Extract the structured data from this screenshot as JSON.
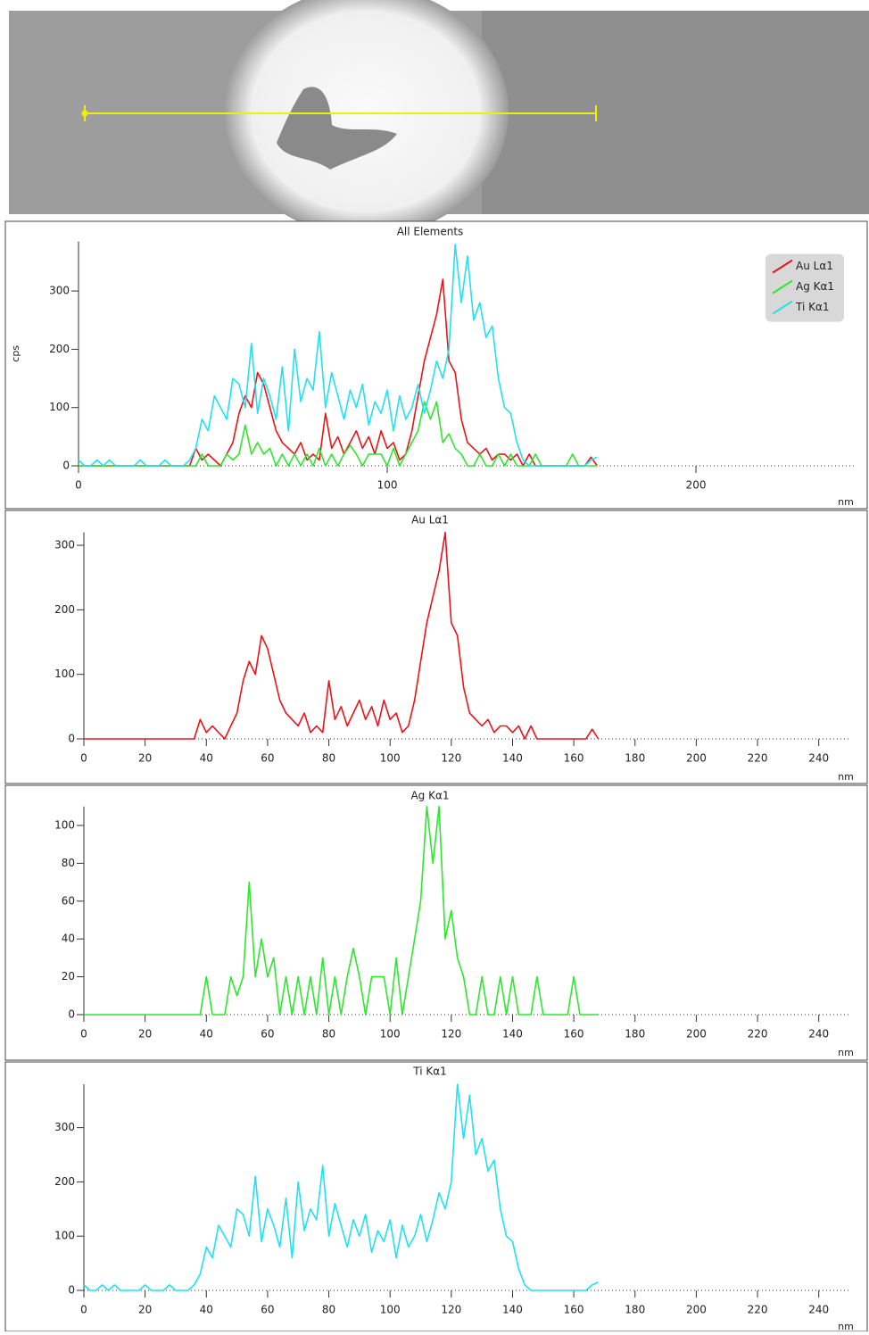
{
  "chart_data": [
    {
      "type": "line",
      "title": "All Elements",
      "xlabel": "nm",
      "ylabel": "cps",
      "x": [
        0,
        2,
        4,
        6,
        8,
        10,
        12,
        14,
        16,
        18,
        20,
        22,
        24,
        26,
        28,
        30,
        32,
        34,
        36,
        38,
        40,
        42,
        44,
        46,
        48,
        50,
        52,
        54,
        56,
        58,
        60,
        62,
        64,
        66,
        68,
        70,
        72,
        74,
        76,
        78,
        80,
        82,
        84,
        86,
        88,
        90,
        92,
        94,
        96,
        98,
        100,
        102,
        104,
        106,
        108,
        110,
        112,
        114,
        116,
        118,
        120,
        122,
        124,
        126,
        128,
        130,
        132,
        134,
        136,
        138,
        140,
        142,
        144,
        146,
        148,
        150,
        152,
        154,
        156,
        158,
        160,
        162,
        164,
        166,
        168
      ],
      "xlim": [
        0,
        252
      ],
      "xticks": [
        0,
        100,
        200
      ],
      "ylim": [
        0,
        385
      ],
      "yticks": [
        0,
        100,
        200,
        300
      ],
      "legend": "top-right",
      "series": [
        {
          "name": "Au Lα1",
          "color": "#e8141b",
          "values": [
            0,
            0,
            0,
            0,
            0,
            0,
            0,
            0,
            0,
            0,
            0,
            0,
            0,
            0,
            0,
            0,
            0,
            0,
            0,
            30,
            10,
            20,
            10,
            0,
            20,
            40,
            90,
            120,
            100,
            160,
            140,
            100,
            60,
            40,
            30,
            20,
            40,
            10,
            20,
            10,
            90,
            30,
            50,
            20,
            40,
            60,
            30,
            50,
            20,
            60,
            30,
            40,
            10,
            20,
            60,
            120,
            180,
            220,
            260,
            320,
            180,
            160,
            80,
            40,
            30,
            20,
            30,
            10,
            20,
            20,
            10,
            20,
            0,
            20,
            0,
            0,
            0,
            0,
            0,
            0,
            0,
            0,
            0,
            15,
            0
          ]
        },
        {
          "name": "Ag Kα1",
          "color": "#2ee62e",
          "values": [
            0,
            0,
            0,
            0,
            0,
            0,
            0,
            0,
            0,
            0,
            0,
            0,
            0,
            0,
            0,
            0,
            0,
            0,
            0,
            0,
            20,
            0,
            0,
            0,
            20,
            10,
            20,
            70,
            20,
            40,
            20,
            30,
            0,
            20,
            0,
            20,
            0,
            20,
            0,
            30,
            0,
            20,
            0,
            20,
            35,
            20,
            0,
            20,
            20,
            20,
            0,
            30,
            0,
            20,
            40,
            60,
            110,
            80,
            110,
            40,
            55,
            30,
            20,
            0,
            0,
            20,
            0,
            0,
            20,
            0,
            20,
            0,
            0,
            0,
            20,
            0,
            0,
            0,
            0,
            0,
            20,
            0,
            0,
            0,
            0
          ]
        },
        {
          "name": "Ti Kα1",
          "color": "#22e0f0",
          "values": [
            10,
            0,
            0,
            10,
            0,
            10,
            0,
            0,
            0,
            0,
            10,
            0,
            0,
            0,
            10,
            0,
            0,
            0,
            10,
            30,
            80,
            60,
            120,
            100,
            80,
            150,
            140,
            100,
            210,
            90,
            150,
            120,
            80,
            170,
            60,
            200,
            110,
            150,
            130,
            230,
            100,
            160,
            120,
            80,
            130,
            100,
            140,
            70,
            110,
            90,
            130,
            60,
            120,
            80,
            100,
            140,
            90,
            130,
            180,
            150,
            200,
            380,
            280,
            360,
            250,
            280,
            220,
            240,
            150,
            100,
            90,
            40,
            10,
            0,
            0,
            0,
            0,
            0,
            0,
            0,
            0,
            0,
            0,
            10,
            15
          ]
        }
      ]
    },
    {
      "type": "line",
      "title": "Au Lα1",
      "xlabel": "nm",
      "x": [
        0,
        2,
        4,
        6,
        8,
        10,
        12,
        14,
        16,
        18,
        20,
        22,
        24,
        26,
        28,
        30,
        32,
        34,
        36,
        38,
        40,
        42,
        44,
        46,
        48,
        50,
        52,
        54,
        56,
        58,
        60,
        62,
        64,
        66,
        68,
        70,
        72,
        74,
        76,
        78,
        80,
        82,
        84,
        86,
        88,
        90,
        92,
        94,
        96,
        98,
        100,
        102,
        104,
        106,
        108,
        110,
        112,
        114,
        116,
        118,
        120,
        122,
        124,
        126,
        128,
        130,
        132,
        134,
        136,
        138,
        140,
        142,
        144,
        146,
        148,
        150,
        152,
        154,
        156,
        158,
        160,
        162,
        164,
        166,
        168
      ],
      "xlim": [
        0,
        250
      ],
      "xticks": [
        0,
        20,
        40,
        60,
        80,
        100,
        120,
        140,
        160,
        180,
        200,
        220,
        240
      ],
      "ylim": [
        0,
        320
      ],
      "yticks": [
        0,
        100,
        200,
        300
      ],
      "series": [
        {
          "color": "#e8141b",
          "values": [
            0,
            0,
            0,
            0,
            0,
            0,
            0,
            0,
            0,
            0,
            0,
            0,
            0,
            0,
            0,
            0,
            0,
            0,
            0,
            30,
            10,
            20,
            10,
            0,
            20,
            40,
            90,
            120,
            100,
            160,
            140,
            100,
            60,
            40,
            30,
            20,
            40,
            10,
            20,
            10,
            90,
            30,
            50,
            20,
            40,
            60,
            30,
            50,
            20,
            60,
            30,
            40,
            10,
            20,
            60,
            120,
            180,
            220,
            260,
            320,
            180,
            160,
            80,
            40,
            30,
            20,
            30,
            10,
            20,
            20,
            10,
            20,
            0,
            20,
            0,
            0,
            0,
            0,
            0,
            0,
            0,
            0,
            0,
            15,
            0
          ]
        }
      ]
    },
    {
      "type": "line",
      "title": "Ag Kα1",
      "xlabel": "nm",
      "x": [
        0,
        2,
        4,
        6,
        8,
        10,
        12,
        14,
        16,
        18,
        20,
        22,
        24,
        26,
        28,
        30,
        32,
        34,
        36,
        38,
        40,
        42,
        44,
        46,
        48,
        50,
        52,
        54,
        56,
        58,
        60,
        62,
        64,
        66,
        68,
        70,
        72,
        74,
        76,
        78,
        80,
        82,
        84,
        86,
        88,
        90,
        92,
        94,
        96,
        98,
        100,
        102,
        104,
        106,
        108,
        110,
        112,
        114,
        116,
        118,
        120,
        122,
        124,
        126,
        128,
        130,
        132,
        134,
        136,
        138,
        140,
        142,
        144,
        146,
        148,
        150,
        152,
        154,
        156,
        158,
        160,
        162,
        164,
        166,
        168
      ],
      "xlim": [
        0,
        250
      ],
      "xticks": [
        0,
        20,
        40,
        60,
        80,
        100,
        120,
        140,
        160,
        180,
        200,
        220,
        240
      ],
      "ylim": [
        0,
        110
      ],
      "yticks": [
        0,
        20,
        40,
        60,
        80,
        100
      ],
      "series": [
        {
          "color": "#2ee62e",
          "values": [
            0,
            0,
            0,
            0,
            0,
            0,
            0,
            0,
            0,
            0,
            0,
            0,
            0,
            0,
            0,
            0,
            0,
            0,
            0,
            0,
            20,
            0,
            0,
            0,
            20,
            10,
            20,
            70,
            20,
            40,
            20,
            30,
            0,
            20,
            0,
            20,
            0,
            20,
            0,
            30,
            0,
            20,
            0,
            20,
            35,
            20,
            0,
            20,
            20,
            20,
            0,
            30,
            0,
            20,
            40,
            60,
            110,
            80,
            110,
            40,
            55,
            30,
            20,
            0,
            0,
            20,
            0,
            0,
            20,
            0,
            20,
            0,
            0,
            0,
            20,
            0,
            0,
            0,
            0,
            0,
            20,
            0,
            0,
            0,
            0
          ]
        }
      ]
    },
    {
      "type": "line",
      "title": "Ti Kα1",
      "xlabel": "nm",
      "x": [
        0,
        2,
        4,
        6,
        8,
        10,
        12,
        14,
        16,
        18,
        20,
        22,
        24,
        26,
        28,
        30,
        32,
        34,
        36,
        38,
        40,
        42,
        44,
        46,
        48,
        50,
        52,
        54,
        56,
        58,
        60,
        62,
        64,
        66,
        68,
        70,
        72,
        74,
        76,
        78,
        80,
        82,
        84,
        86,
        88,
        90,
        92,
        94,
        96,
        98,
        100,
        102,
        104,
        106,
        108,
        110,
        112,
        114,
        116,
        118,
        120,
        122,
        124,
        126,
        128,
        130,
        132,
        134,
        136,
        138,
        140,
        142,
        144,
        146,
        148,
        150,
        152,
        154,
        156,
        158,
        160,
        162,
        164,
        166,
        168
      ],
      "xlim": [
        0,
        250
      ],
      "xticks": [
        0,
        20,
        40,
        60,
        80,
        100,
        120,
        140,
        160,
        180,
        200,
        220,
        240
      ],
      "ylim": [
        0,
        380
      ],
      "yticks": [
        0,
        100,
        200,
        300
      ],
      "series": [
        {
          "color": "#22e0f0",
          "values": [
            10,
            0,
            0,
            10,
            0,
            10,
            0,
            0,
            0,
            0,
            10,
            0,
            0,
            0,
            10,
            0,
            0,
            0,
            10,
            30,
            80,
            60,
            120,
            100,
            80,
            150,
            140,
            100,
            210,
            90,
            150,
            120,
            80,
            170,
            60,
            200,
            110,
            150,
            130,
            230,
            100,
            160,
            120,
            80,
            130,
            100,
            140,
            70,
            110,
            90,
            130,
            60,
            120,
            80,
            100,
            140,
            90,
            130,
            180,
            150,
            200,
            380,
            280,
            360,
            250,
            280,
            220,
            240,
            150,
            100,
            90,
            40,
            10,
            0,
            0,
            0,
            0,
            0,
            0,
            0,
            0,
            0,
            0,
            10,
            15
          ]
        }
      ]
    }
  ]
}
